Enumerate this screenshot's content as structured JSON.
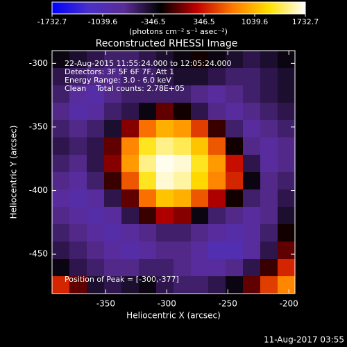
{
  "chart_data": {
    "type": "heatmap",
    "title": "Reconstructed RHESSI Image",
    "colorbar_label": "(photons cm⁻² s⁻¹ asec⁻²)",
    "clim": [
      -1732.7,
      1732.7
    ],
    "cticks": [
      -1732.7,
      -1039.6,
      -346.5,
      346.5,
      1039.6,
      1732.7
    ],
    "colorscale": [
      "#0000ff",
      "#4a30c8",
      "#5a2c96",
      "#000000",
      "#c00000",
      "#ff7a00",
      "#ffe000",
      "#ffffff"
    ],
    "annotations": [
      "22-Aug-2015 11:55:24.000 to 12:05:24.000",
      "Detectors: 3F 5F 6F 7F, Att 1",
      "Energy Range: 3.0 - 6.0 keV",
      "Clean    Total counts: 2.78E+05"
    ],
    "peak_label": "Position of Peak = [-300,-377]",
    "xlabel": "Heliocentric X (arcsec)",
    "ylabel": "Heliocentric Y (arcsec)",
    "xlim": [
      -394,
      -195
    ],
    "xticks": [
      -350,
      -300,
      -250,
      -200
    ],
    "ylim": [
      -481,
      -290
    ],
    "yticks": [
      -450,
      -400,
      -350,
      -300
    ],
    "footer": "11-Aug-2017 03:55",
    "z": [
      [
        -300,
        -400,
        -500,
        -600,
        -600,
        -500,
        -400,
        -300,
        -200,
        -300,
        -400,
        -500,
        -400,
        -300
      ],
      [
        -500,
        -600,
        -700,
        -700,
        -600,
        -600,
        -500,
        -400,
        -400,
        -500,
        -600,
        -600,
        -500,
        -400
      ],
      [
        -600,
        -800,
        -900,
        -700,
        -600,
        -600,
        -600,
        -600,
        -700,
        -800,
        -700,
        -600,
        -500,
        -400
      ],
      [
        -700,
        -900,
        -800,
        -600,
        -500,
        -300,
        0,
        -200,
        -500,
        -700,
        -800,
        -700,
        -600,
        -500
      ],
      [
        -600,
        -700,
        -600,
        -400,
        100,
        700,
        1000,
        900,
        500,
        -100,
        -600,
        -800,
        -700,
        -600
      ],
      [
        -500,
        -600,
        -500,
        0,
        800,
        1300,
        1500,
        1400,
        1100,
        600,
        -200,
        -700,
        -800,
        -700
      ],
      [
        -600,
        -700,
        -500,
        100,
        900,
        1500,
        1700,
        1650,
        1300,
        900,
        300,
        -500,
        -800,
        -700
      ],
      [
        -700,
        -800,
        -600,
        -100,
        600,
        1300,
        1650,
        1550,
        1200,
        800,
        400,
        -300,
        -700,
        -600
      ],
      [
        -800,
        -900,
        -800,
        -500,
        0,
        700,
        1100,
        1000,
        600,
        200,
        -200,
        -600,
        -700,
        -500
      ],
      [
        -700,
        -800,
        -900,
        -800,
        -500,
        -100,
        200,
        100,
        -300,
        -600,
        -700,
        -800,
        -700,
        -400
      ],
      [
        -600,
        -700,
        -800,
        -900,
        -800,
        -700,
        -600,
        -600,
        -700,
        -800,
        -900,
        -800,
        -600,
        -200
      ],
      [
        -500,
        -600,
        -700,
        -800,
        -900,
        -800,
        -700,
        -700,
        -800,
        -1000,
        -1000,
        -800,
        -500,
        0
      ],
      [
        -300,
        -500,
        -600,
        -700,
        -700,
        -600,
        -600,
        -700,
        -800,
        -800,
        -700,
        -500,
        -100,
        400
      ],
      [
        400,
        0,
        -400,
        -500,
        -400,
        -300,
        -500,
        -600,
        -600,
        -500,
        -300,
        0,
        500,
        800
      ]
    ]
  }
}
